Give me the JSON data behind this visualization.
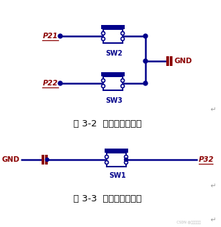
{
  "bg_color": "#ffffff",
  "blue": "#00008B",
  "red": "#8B0000",
  "fig_title1": "图 3-2  从机按键电路图",
  "fig_title2": "图 3-3  主机按键电路图",
  "label_P21": "P21",
  "label_P22": "P22",
  "label_P32": "P32",
  "label_GND1": "GND",
  "label_GND2": "GND",
  "label_SW2": "SW2",
  "label_SW3": "SW3",
  "label_SW1": "SW1",
  "watermark": "CSDN @嵌入式基地"
}
